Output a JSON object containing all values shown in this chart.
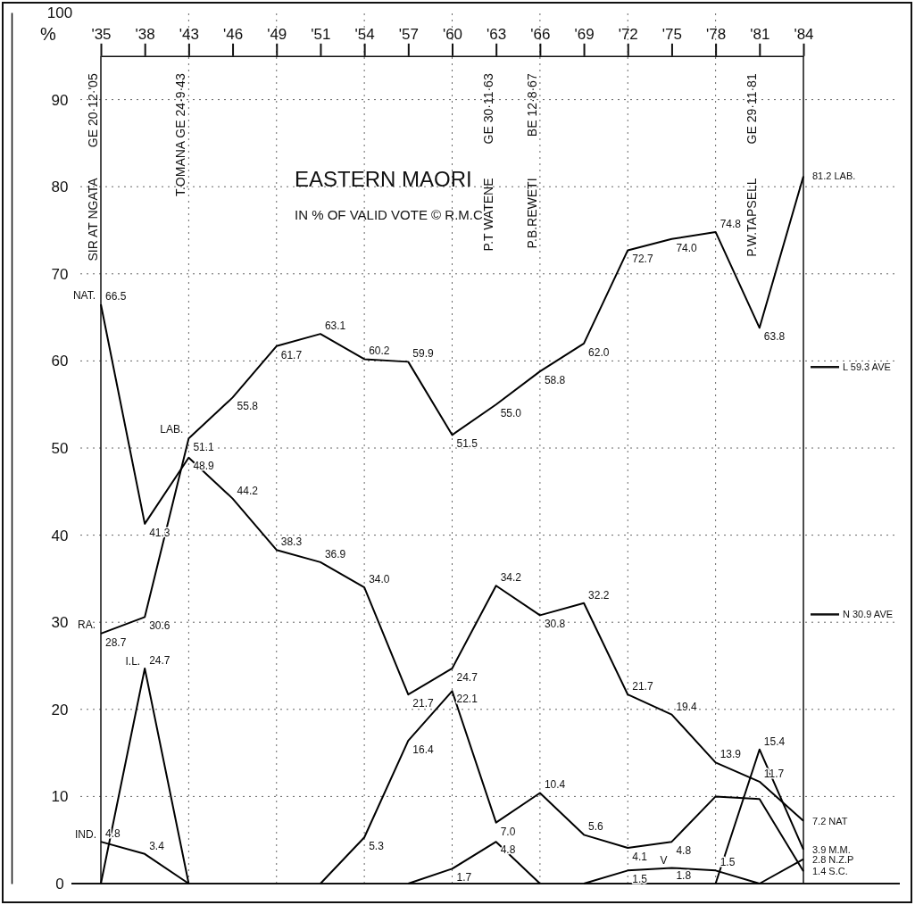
{
  "chart_data": {
    "type": "line",
    "title": "EASTERN MAORI",
    "subtitle": "IN % OF VALID VOTE © R.M.C.",
    "ylabel": "%",
    "categories": [
      "'35",
      "'38",
      "'43",
      "'46",
      "'49",
      "'51",
      "'54",
      "'57",
      "'60",
      "'63",
      "'66",
      "'69",
      "'72",
      "'75",
      "'78",
      "'81",
      "'84"
    ],
    "ylim": [
      0,
      100
    ],
    "yticks": [
      0,
      10,
      20,
      30,
      40,
      50,
      60,
      70,
      80,
      90,
      100
    ],
    "grid": true,
    "line_style": "solid",
    "series": [
      {
        "name": "LAB.",
        "color": "#000000",
        "values": [
          28.7,
          30.6,
          51.1,
          55.8,
          61.7,
          63.1,
          60.2,
          59.9,
          51.5,
          55.0,
          58.8,
          62.0,
          72.7,
          74.0,
          74.8,
          63.8,
          81.2
        ],
        "value_labels": [
          "28.7",
          "30.6",
          "51.1",
          "55.8",
          "61.7",
          "63.1",
          "60.2",
          "59.9",
          "51.5",
          "55.0",
          "58.8",
          "62.0",
          "72.7",
          "74.0",
          "74.8",
          "63.8",
          "81.2"
        ]
      },
      {
        "name": "NAT",
        "color": "#000000",
        "values": [
          66.5,
          41.3,
          48.9,
          44.2,
          38.3,
          36.9,
          34.0,
          21.7,
          24.7,
          34.2,
          30.8,
          32.2,
          21.7,
          19.4,
          13.9,
          11.7,
          7.2
        ],
        "value_labels": [
          "66.5",
          "41.3",
          "48.9",
          "44.2",
          "38.3",
          "36.9",
          "34.0",
          "21.7",
          "24.7",
          "34.2",
          "30.8",
          "32.2",
          "21.7",
          "19.4",
          "13.9",
          "11.7",
          "7.2"
        ]
      },
      {
        "name": "I.L.",
        "color": "#000000",
        "values": [
          0,
          24.7,
          0,
          null,
          null,
          null,
          null,
          null,
          null,
          null,
          null,
          null,
          null,
          null,
          null,
          null,
          null
        ],
        "value_labels": [
          null,
          "24.7",
          null,
          null,
          null,
          null,
          null,
          null,
          null,
          null,
          null,
          null,
          null,
          null,
          null,
          null,
          null
        ]
      },
      {
        "name": "IND.",
        "color": "#000000",
        "values": [
          4.8,
          3.4,
          0,
          null,
          null,
          null,
          null,
          null,
          null,
          null,
          null,
          null,
          null,
          null,
          null,
          null,
          null
        ],
        "value_labels": [
          "4.8",
          "3.4",
          null,
          null,
          null,
          null,
          null,
          null,
          null,
          null,
          null,
          null,
          null,
          null,
          null,
          null,
          null
        ]
      },
      {
        "name": "S.C.",
        "color": "#000000",
        "values": [
          null,
          null,
          null,
          null,
          null,
          0,
          5.3,
          16.4,
          22.1,
          7.0,
          10.4,
          5.6,
          4.1,
          4.8,
          10.0,
          9.7,
          1.4
        ],
        "value_labels": [
          null,
          null,
          null,
          null,
          null,
          null,
          "5.3",
          "16.4",
          "22.1",
          "7.0",
          "10.4",
          "5.6",
          "4.1",
          "4.8",
          null,
          null,
          "1.4"
        ]
      },
      {
        "color": "#000000",
        "values": [
          null,
          null,
          null,
          null,
          null,
          null,
          null,
          0,
          1.7,
          4.8,
          0,
          null,
          null,
          null,
          null,
          null,
          null
        ],
        "value_labels": [
          null,
          null,
          null,
          null,
          null,
          null,
          null,
          null,
          "1.7",
          "4.8",
          null,
          null,
          null,
          null,
          null,
          null,
          null
        ]
      },
      {
        "name": "V",
        "color": "#000000",
        "values": [
          null,
          null,
          null,
          null,
          null,
          null,
          null,
          null,
          null,
          null,
          null,
          0,
          1.5,
          1.8,
          1.5,
          0,
          null
        ],
        "value_labels": [
          null,
          null,
          null,
          null,
          null,
          null,
          null,
          null,
          null,
          null,
          null,
          null,
          "1.5",
          "1.8",
          "1.5",
          null,
          null
        ]
      },
      {
        "name": "M.M.",
        "color": "#000000",
        "values": [
          null,
          null,
          null,
          null,
          null,
          null,
          null,
          null,
          null,
          null,
          null,
          null,
          null,
          null,
          0,
          15.4,
          3.9
        ],
        "value_labels": [
          null,
          null,
          null,
          null,
          null,
          null,
          null,
          null,
          null,
          null,
          null,
          null,
          null,
          null,
          null,
          "15.4",
          "3.9"
        ]
      },
      {
        "name": "N.Z.P",
        "color": "#000000",
        "values": [
          null,
          null,
          null,
          null,
          null,
          null,
          null,
          null,
          null,
          null,
          null,
          null,
          null,
          null,
          null,
          0,
          2.8
        ],
        "value_labels": [
          null,
          null,
          null,
          null,
          null,
          null,
          null,
          null,
          null,
          null,
          null,
          null,
          null,
          null,
          null,
          null,
          "2.8"
        ]
      }
    ],
    "ref_lines": [
      {
        "axis": "y",
        "value": 59.3,
        "label": "L 59.3 AVE"
      },
      {
        "axis": "y",
        "value": 30.9,
        "label": "N 30.9 AVE"
      }
    ],
    "annotations": [
      {
        "text": "NAT.",
        "x": "'35",
        "y": 66.5
      },
      {
        "text": "RA.",
        "x": "'35",
        "y": 28.7
      },
      "LAB.",
      "SIR AT NGATA",
      "GE 20·12·'05",
      "T.OMANA GE 24·9·43",
      "P.T WATENE",
      "GE 30·11·63",
      "P.B.REWETI",
      "BE 12·8·67",
      "P.W.TAPSELL",
      "GE 29·11·81"
    ]
  }
}
